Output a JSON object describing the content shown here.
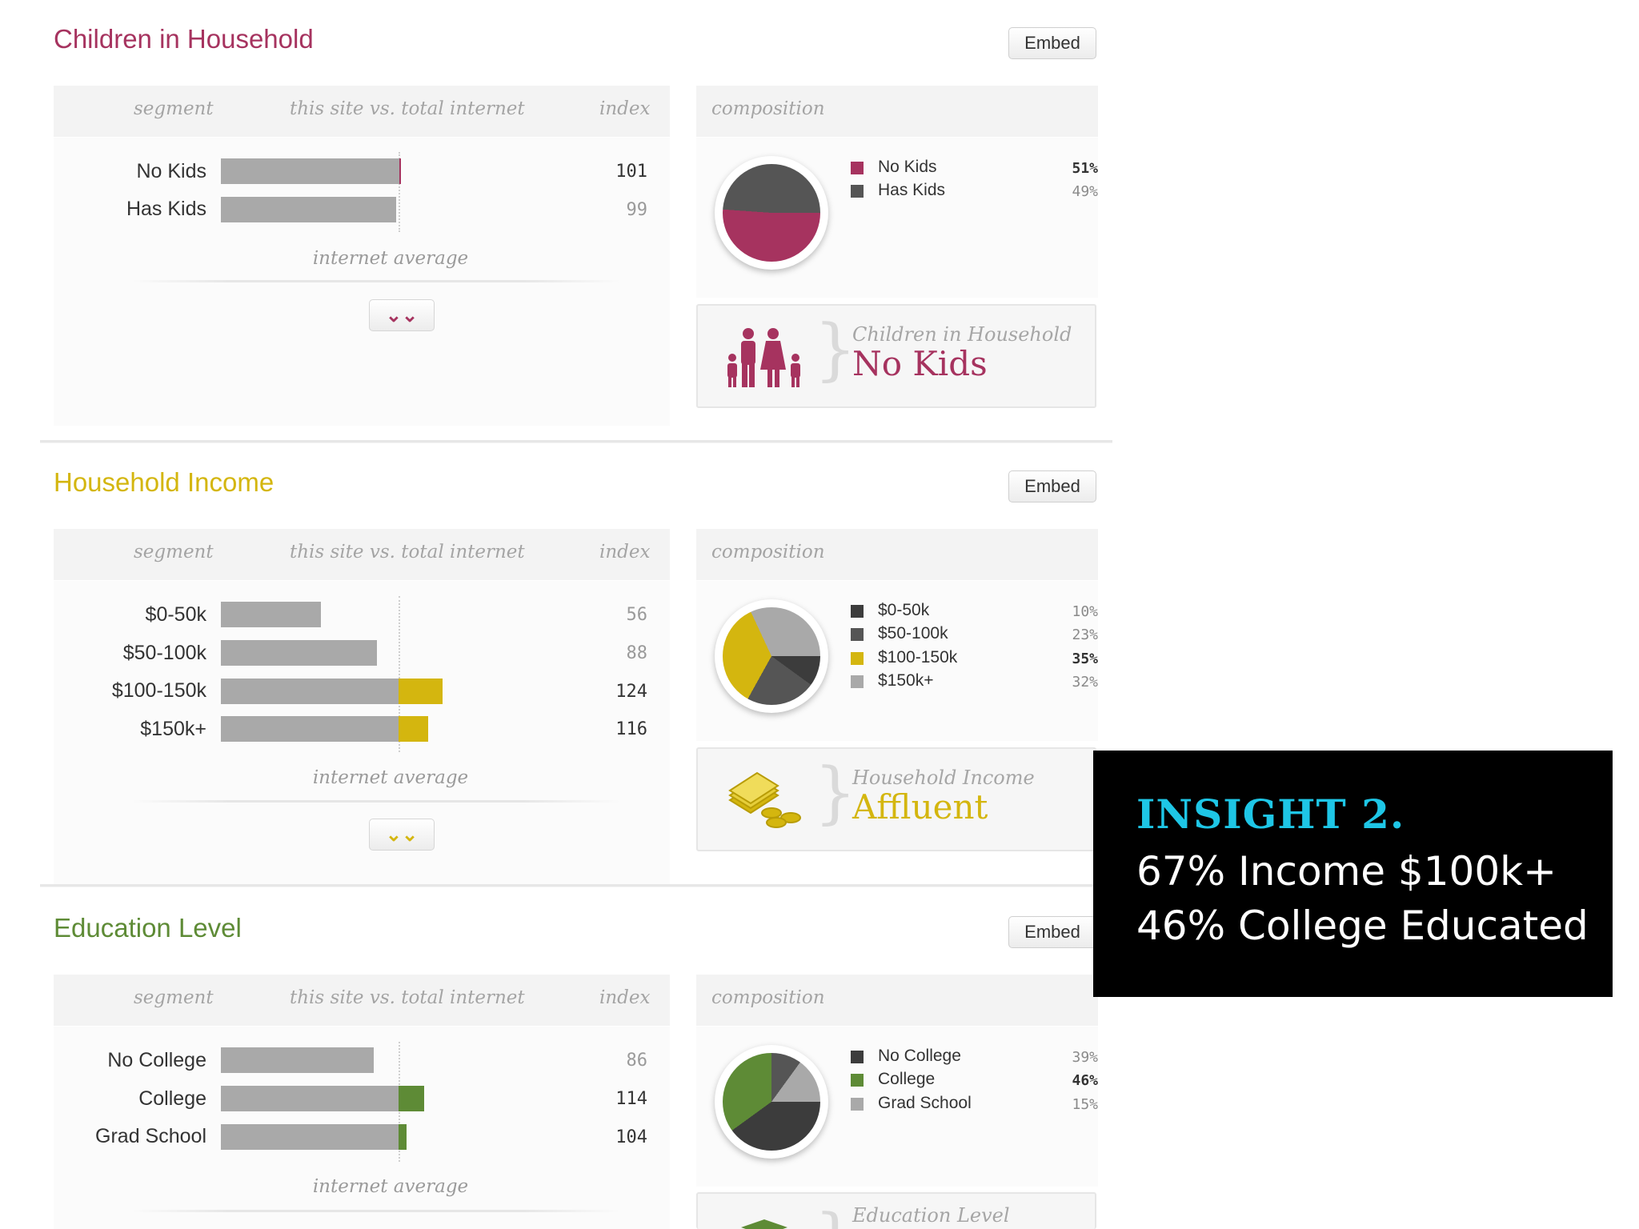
{
  "colors": {
    "kids_accent": "#a6335f",
    "income_accent": "#d4b60f",
    "education_accent": "#5e8b36",
    "bar_gray": "#a9a9a9",
    "dark_gray": "#3c3c3c",
    "mid_gray": "#555555",
    "insight_title": "#1ec6e6"
  },
  "table_headers": {
    "segment": "segment",
    "comparison": "this site vs. total internet",
    "index": "index",
    "composition": "composition"
  },
  "internet_average_label": "internet average",
  "embed_label": "Embed",
  "sections": {
    "kids": {
      "title": "Children in Household",
      "rows": [
        {
          "label": "No Kids",
          "index": "101"
        },
        {
          "label": "Has Kids",
          "index": "99"
        }
      ],
      "legend": [
        {
          "label": "No Kids",
          "pct": "51%"
        },
        {
          "label": "Has Kids",
          "pct": "49%"
        }
      ],
      "summary_sub": "Children in Household",
      "summary_value": "No Kids",
      "summary_icon": "family-icon"
    },
    "income": {
      "title": "Household Income",
      "rows": [
        {
          "label": "$0-50k",
          "index": "56"
        },
        {
          "label": "$50-100k",
          "index": "88"
        },
        {
          "label": "$100-150k",
          "index": "124"
        },
        {
          "label": "$150k+",
          "index": "116"
        }
      ],
      "legend": [
        {
          "label": "$0-50k",
          "pct": "10%"
        },
        {
          "label": "$50-100k",
          "pct": "23%"
        },
        {
          "label": "$100-150k",
          "pct": "35%"
        },
        {
          "label": "$150k+",
          "pct": "32%"
        }
      ],
      "summary_sub": "Household Income",
      "summary_value": "Affluent",
      "summary_icon": "money-coins-icon"
    },
    "education": {
      "title": "Education Level",
      "rows": [
        {
          "label": "No College",
          "index": "86"
        },
        {
          "label": "College",
          "index": "114"
        },
        {
          "label": "Grad School",
          "index": "104"
        }
      ],
      "legend": [
        {
          "label": "No College",
          "pct": "39%"
        },
        {
          "label": "College",
          "pct": "46%"
        },
        {
          "label": "Grad School",
          "pct": "15%"
        }
      ],
      "summary_sub": "Education Level"
    }
  },
  "insight": {
    "title": "INSIGHT 2.",
    "line1": "67% Income $100k+",
    "line2": "46% College Educated"
  }
}
